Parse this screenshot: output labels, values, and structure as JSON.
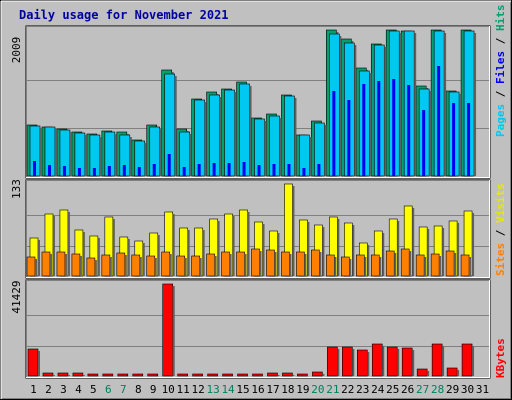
{
  "chart_data": {
    "type": "bar",
    "title": "Daily usage for November 2021",
    "categories": [
      "1",
      "2",
      "3",
      "4",
      "5",
      "6",
      "7",
      "8",
      "9",
      "10",
      "11",
      "12",
      "13",
      "14",
      "15",
      "16",
      "17",
      "18",
      "19",
      "20",
      "21",
      "22",
      "23",
      "24",
      "25",
      "26",
      "27",
      "28",
      "29",
      "30",
      "31"
    ],
    "weekend_days": [
      "6",
      "7",
      "13",
      "14",
      "20",
      "21",
      "27",
      "28"
    ],
    "panels": [
      {
        "id": "hits-files-pages",
        "max_label": "2009",
        "ymax": 2009,
        "axis_label": {
          "pages": "Pages",
          "sep1": " / ",
          "files": "Files",
          "sep2": " / ",
          "hits": "Hits"
        },
        "series": [
          {
            "name": "Hits",
            "color": "#00a070",
            "values": [
              700,
              680,
              650,
              600,
              580,
              620,
              600,
              500,
              700,
              1460,
              640,
              1060,
              1150,
              1200,
              1300,
              800,
              850,
              1120,
              570,
              760,
              2009,
              1880,
              1490,
              1820,
              2009,
              2000,
              1240,
              2009,
              1170,
              2009,
              null
            ]
          },
          {
            "name": "Files",
            "color": "#00c8f0",
            "values": [
              690,
              670,
              630,
              590,
              560,
              600,
              570,
              480,
              680,
              1400,
              610,
              1040,
              1120,
              1180,
              1270,
              780,
              820,
              1100,
              560,
              730,
              1950,
              1830,
              1450,
              1800,
              2000,
              2000,
              1200,
              2000,
              1150,
              2000,
              null
            ]
          },
          {
            "name": "Pages",
            "color": "#0000f0",
            "values": [
              210,
              150,
              140,
              110,
              115,
              140,
              145,
              120,
              160,
              300,
              130,
              170,
              175,
              180,
              195,
              150,
              170,
              160,
              115,
              170,
              1170,
              1050,
              1270,
              1310,
              1340,
              1250,
              910,
              1510,
              1000,
              1000,
              null
            ]
          }
        ]
      },
      {
        "id": "visits-sites",
        "max_label": "133",
        "ymax": 133,
        "axis_label": {
          "sites": "Sites",
          "sep": " / ",
          "visits": "Visits"
        },
        "series": [
          {
            "name": "Visits",
            "color": "#ffff00",
            "values": [
              55,
              90,
              95,
              67,
              58,
              85,
              57,
              50,
              62,
              93,
              70,
              70,
              83,
              90,
              95,
              78,
              65,
              133,
              81,
              74,
              85,
              77,
              48,
              65,
              82,
              101,
              71,
              72,
              80,
              94,
              null
            ]
          },
          {
            "name": "Sites",
            "color": "#ff8000",
            "values": [
              27,
              34,
              34,
              32,
              26,
              30,
              33,
              31,
              29,
              35,
              29,
              29,
              32,
              35,
              35,
              39,
              38,
              34,
              34,
              38,
              31,
              28,
              30,
              30,
              36,
              39,
              30,
              32,
              36,
              30,
              null
            ]
          }
        ]
      },
      {
        "id": "kbytes",
        "max_label": "41429",
        "ymax": 41429,
        "axis_label": {
          "kbytes": "KBytes"
        },
        "series": [
          {
            "name": "KBytes",
            "color": "#ff0000",
            "values": [
              12200,
              1200,
              1300,
              1300,
              900,
              900,
              900,
              900,
              900,
              41429,
              500,
              800,
              900,
              900,
              1100,
              1100,
              1200,
              1400,
              1100,
              1800,
              12900,
              12900,
              11500,
              14600,
              13000,
              12500,
              3300,
              14200,
              3400,
              14400,
              null
            ]
          }
        ]
      }
    ],
    "colors": {
      "title": "#0000a0",
      "axis_text": "#000000",
      "weekend": "#00805c",
      "plot_bg": "#c0c0c0"
    }
  }
}
